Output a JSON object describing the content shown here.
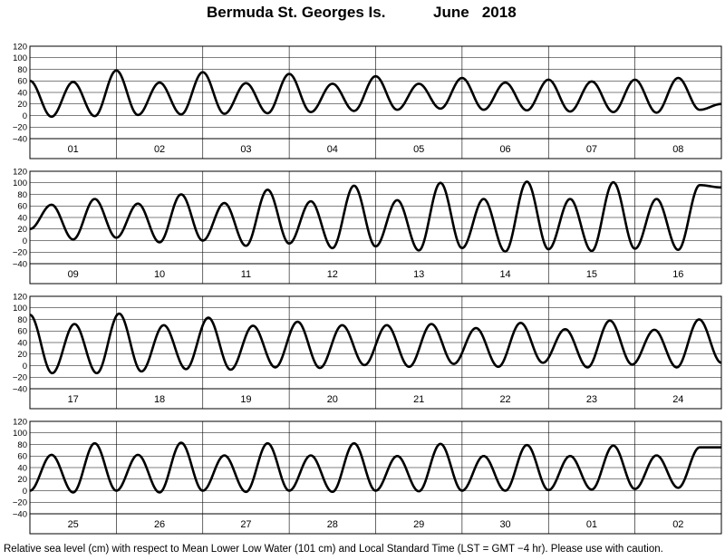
{
  "header": {
    "station": "Bermuda St. Georges Is.",
    "period": "June   2018"
  },
  "footer": {
    "note": "Relative sea level (cm) with respect to Mean Lower Low Water (101 cm) and Local Standard Time (LST = GMT −4 hr). Please use with caution."
  },
  "chart_data": [
    {
      "type": "line",
      "title": "",
      "xlabel": "",
      "ylabel": "",
      "ylim": [
        -40,
        120
      ],
      "yticks": [
        -40,
        -20,
        0,
        20,
        40,
        60,
        80,
        100,
        120
      ],
      "ytick_labels": [
        "−40",
        "−20",
        "0",
        "20",
        "40",
        "60",
        "80",
        "100",
        "120"
      ],
      "grid": true,
      "days": [
        "01",
        "02",
        "03",
        "04",
        "05",
        "06",
        "07",
        "08"
      ],
      "start_value": 60,
      "extrema": [
        -2,
        58,
        -1,
        78,
        1,
        57,
        2,
        75,
        3,
        56,
        4,
        72,
        6,
        55,
        8,
        68,
        10,
        55,
        12,
        65,
        10,
        57,
        9,
        62,
        7,
        59,
        6,
        62,
        5,
        65,
        10
      ],
      "end_value": 20
    },
    {
      "type": "line",
      "title": "",
      "xlabel": "",
      "ylabel": "",
      "ylim": [
        -40,
        120
      ],
      "yticks": [
        -40,
        -20,
        0,
        20,
        40,
        60,
        80,
        100,
        120
      ],
      "ytick_labels": [
        "−40",
        "−20",
        "0",
        "20",
        "40",
        "60",
        "80",
        "100",
        "120"
      ],
      "grid": true,
      "days": [
        "09",
        "10",
        "11",
        "12",
        "13",
        "14",
        "15",
        "16"
      ],
      "start_value": 20,
      "extrema": [
        62,
        2,
        72,
        5,
        64,
        -3,
        80,
        0,
        65,
        -9,
        88,
        -5,
        68,
        -13,
        95,
        -10,
        70,
        -17,
        100,
        -13,
        72,
        -19,
        102,
        -15,
        72,
        -18,
        101,
        -14,
        72,
        -16,
        96
      ],
      "end_value": 92
    },
    {
      "type": "line",
      "title": "",
      "xlabel": "",
      "ylabel": "",
      "ylim": [
        -40,
        120
      ],
      "yticks": [
        -40,
        -20,
        0,
        20,
        40,
        60,
        80,
        100,
        120
      ],
      "ytick_labels": [
        "−40",
        "−20",
        "0",
        "20",
        "40",
        "60",
        "80",
        "100",
        "120"
      ],
      "grid": true,
      "days": [
        "17",
        "18",
        "19",
        "20",
        "21",
        "22",
        "23",
        "24"
      ],
      "start_value": 88,
      "extrema": [
        -13,
        72,
        -13,
        90,
        -10,
        70,
        -6,
        83,
        -7,
        69,
        -3,
        76,
        -4,
        70,
        1,
        70,
        -2,
        72,
        3,
        65,
        -2,
        74,
        5,
        63,
        -3,
        78,
        2,
        62,
        -3,
        80
      ],
      "end_value": 5
    },
    {
      "type": "line",
      "title": "",
      "xlabel": "",
      "ylabel": "",
      "ylim": [
        -40,
        120
      ],
      "yticks": [
        -40,
        -20,
        0,
        20,
        40,
        60,
        80,
        100,
        120
      ],
      "ytick_labels": [
        "−40",
        "−20",
        "0",
        "20",
        "40",
        "60",
        "80",
        "100",
        "120"
      ],
      "grid": true,
      "days": [
        "25",
        "26",
        "27",
        "28",
        "29",
        "30",
        "01",
        "02"
      ],
      "start_value": 0,
      "extrema": [
        62,
        -3,
        82,
        0,
        62,
        -3,
        83,
        0,
        61,
        -2,
        82,
        0,
        61,
        -2,
        82,
        0,
        60,
        -1,
        81,
        0,
        60,
        0,
        79,
        1,
        60,
        2,
        78,
        3,
        61,
        5,
        75
      ],
      "end_value": 75
    }
  ]
}
